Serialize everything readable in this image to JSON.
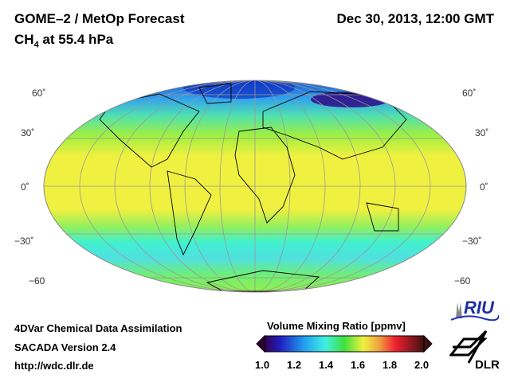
{
  "header": {
    "title": "GOME–2 / MetOp Forecast",
    "subtitle_main": "CH",
    "subtitle_sub": "4",
    "subtitle_rest": " at 55.4 hPa",
    "date": "Dec 30, 2013, 12:00 GMT"
  },
  "map": {
    "lat_labels": [
      "60˚",
      "30˚",
      "0˚",
      "−30˚",
      "−60"
    ]
  },
  "footer": {
    "line1": "4DVar Chemical Data Assimilation",
    "line2": "SACADA Version 2.4",
    "line3": "http://wdc.dlr.de"
  },
  "colorbar": {
    "title": "Volume Mixing Ratio [ppmv]",
    "ticks": [
      "1.0",
      "1.2",
      "1.4",
      "1.6",
      "1.8",
      "2.0"
    ],
    "min": 1.0,
    "max": 2.0
  },
  "logos": {
    "riu": "RIU",
    "dlr": "DLR"
  }
}
